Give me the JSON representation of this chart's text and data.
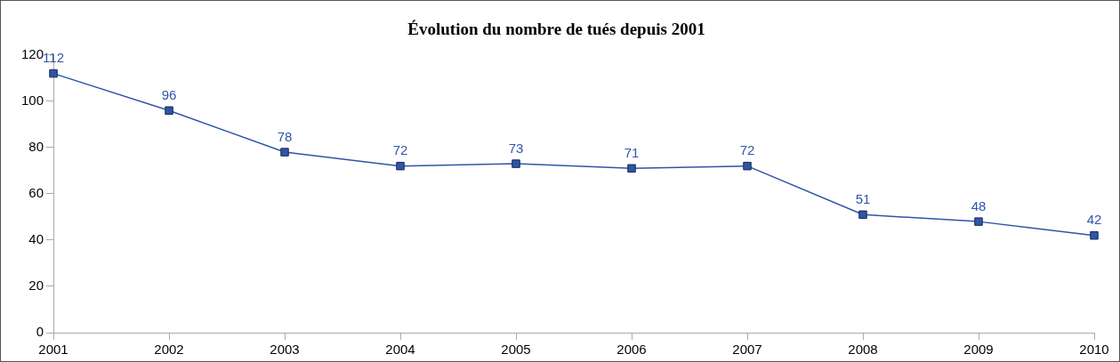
{
  "chart_data": {
    "type": "line",
    "title": "Évolution du nombre de tués depuis 2001",
    "categories": [
      "2001",
      "2002",
      "2003",
      "2004",
      "2005",
      "2006",
      "2007",
      "2008",
      "2009",
      "2010"
    ],
    "series": [
      {
        "color": "#2f55a8",
        "values": [
          112,
          96,
          78,
          72,
          73,
          71,
          72,
          51,
          48,
          42
        ]
      }
    ],
    "ylim": [
      0,
      120
    ],
    "yticks": [
      0,
      20,
      40,
      60,
      80,
      100,
      120
    ],
    "marker": "square",
    "line_style": "solid",
    "data_labels": true,
    "grid": false,
    "legend": false
  }
}
